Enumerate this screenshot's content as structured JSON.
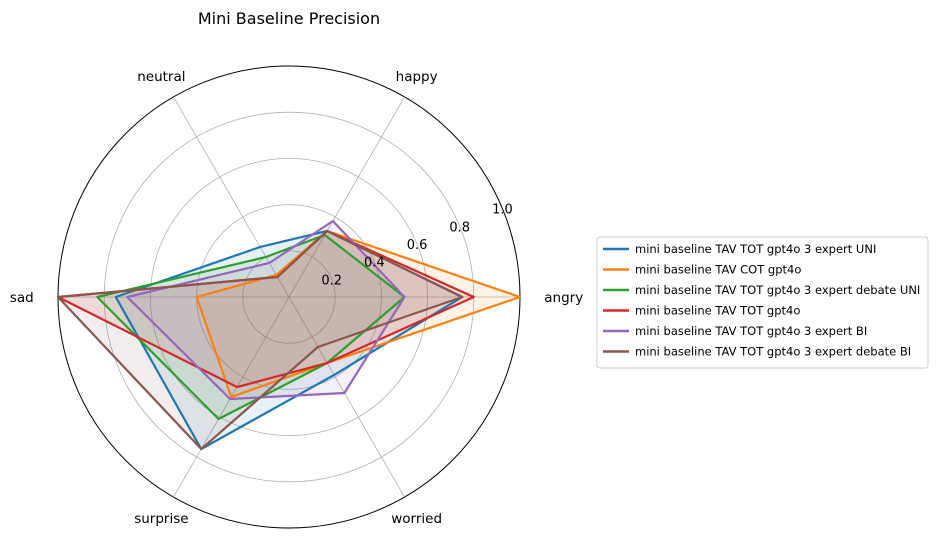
{
  "chart_data": {
    "type": "radar",
    "title": "Mini Baseline Precision",
    "categories": [
      "angry",
      "happy",
      "neutral",
      "sad",
      "surprise",
      "worried"
    ],
    "rlim": [
      0,
      1.0
    ],
    "rticks": [
      "0.2",
      "0.4",
      "0.6",
      "0.8",
      "1.0"
    ],
    "rtick_values": [
      0.2,
      0.4,
      0.6,
      0.8,
      1.0
    ],
    "grid": true,
    "legend_position": "right",
    "series": [
      {
        "name": "mini baseline TAV TOT gpt4o 3 expert UNI",
        "color": "#1f77b4",
        "values": [
          0.75,
          0.33,
          0.25,
          0.75,
          0.76,
          0.39
        ]
      },
      {
        "name": "mini baseline TAV COT gpt4o",
        "color": "#ff7f0e",
        "values": [
          1.0,
          0.33,
          0.11,
          0.4,
          0.5,
          0.33
        ]
      },
      {
        "name": "mini baseline TAV TOT gpt4o 3 expert debate UNI",
        "color": "#2ca02c",
        "values": [
          0.5,
          0.31,
          0.2,
          0.83,
          0.61,
          0.33
        ]
      },
      {
        "name": "mini baseline TAV TOT gpt4o",
        "color": "#d62728",
        "values": [
          0.8,
          0.33,
          0.1,
          1.0,
          0.45,
          0.33
        ]
      },
      {
        "name": "mini baseline TAV TOT gpt4o 3 expert BI",
        "color": "#9467bd",
        "values": [
          0.5,
          0.38,
          0.17,
          0.7,
          0.51,
          0.48
        ]
      },
      {
        "name": "mini baseline TAV TOT gpt4o 3 expert debate BI",
        "color": "#8c564b",
        "values": [
          0.75,
          0.33,
          0.1,
          1.0,
          0.76,
          0.25
        ]
      }
    ]
  }
}
